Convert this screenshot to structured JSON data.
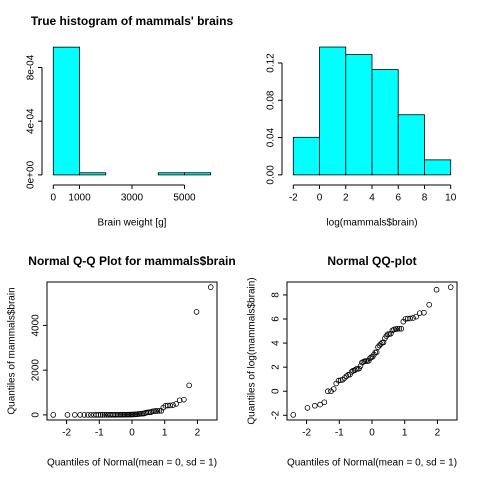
{
  "chart_data": [
    {
      "type": "histogram",
      "title": "True histogram of mammals' brains",
      "xlabel": "Brain weight [g]",
      "bins": [
        0,
        1000,
        2000,
        3000,
        4000,
        5000,
        6000
      ],
      "values": [
        0.0009516,
        1.613e-05,
        0,
        0,
        1.613e-05,
        1.613e-05
      ],
      "color": "#00ffff",
      "xlim": [
        -240,
        6240
      ],
      "ylim": [
        -3.8e-05,
        0.00099
      ],
      "xticks": [
        0,
        1000,
        3000,
        5000
      ],
      "yticks": [
        {
          "value": 0,
          "label": "0e+00"
        },
        {
          "value": 0.0004,
          "label": "4e-04"
        },
        {
          "value": 0.0008,
          "label": "8e-04"
        }
      ]
    },
    {
      "type": "histogram",
      "title": "",
      "xlabel": "log(mammals$brain)",
      "bins": [
        -2,
        0,
        2,
        4,
        6,
        8,
        10
      ],
      "values": [
        0.0403,
        0.1371,
        0.129,
        0.1129,
        0.0645,
        0.0161
      ],
      "color": "#00ffff",
      "xlim": [
        -2.48,
        10.48
      ],
      "ylim": [
        -0.0055,
        0.1425
      ],
      "xticks": [
        -2,
        0,
        2,
        4,
        6,
        8,
        10
      ],
      "yticks": [
        {
          "value": 0,
          "label": "0.00"
        },
        0.04,
        0.08,
        0.12
      ]
    },
    {
      "type": "scatter",
      "title": "Normal Q-Q Plot for mammals$brain",
      "xlabel": "Quantiles of Normal(mean = 0, sd = 1)",
      "ylabel": "Quantiles of mammals$brain",
      "x": [
        -2.406,
        -1.973,
        -1.748,
        -1.586,
        -1.457,
        -1.349,
        -1.254,
        -1.17,
        -1.094,
        -1.023,
        -0.957,
        -0.894,
        -0.836,
        -0.78,
        -0.726,
        -0.674,
        -0.624,
        -0.576,
        -0.529,
        -0.483,
        -0.438,
        -0.394,
        -0.351,
        -0.308,
        -0.266,
        -0.225,
        -0.183,
        -0.142,
        -0.101,
        -0.061,
        -0.02,
        0.02,
        0.061,
        0.101,
        0.142,
        0.183,
        0.225,
        0.266,
        0.308,
        0.351,
        0.394,
        0.438,
        0.483,
        0.529,
        0.576,
        0.624,
        0.674,
        0.726,
        0.78,
        0.836,
        0.894,
        0.957,
        1.023,
        1.094,
        1.17,
        1.254,
        1.349,
        1.457,
        1.586,
        1.748,
        1.973,
        2.406
      ],
      "y": [
        0.14,
        0.25,
        0.3,
        0.33,
        0.4,
        1,
        1,
        1.2,
        1.9,
        2.4,
        2.5,
        2.6,
        3,
        3.5,
        3.9,
        4,
        5,
        5.5,
        5.7,
        6.3,
        6.4,
        6.6,
        8.1,
        10.8,
        11.4,
        12.1,
        12.3,
        12.3,
        12.5,
        15.5,
        17,
        17.5,
        21,
        25,
        25.6,
        39.2,
        44.5,
        50.4,
        56,
        58,
        81,
        98.2,
        115,
        115,
        119.5,
        157,
        169,
        175,
        179,
        179.5,
        180,
        325,
        406,
        419,
        423,
        440,
        490,
        655,
        680,
        1320,
        4603,
        5712
      ],
      "xlim": [
        -2.598,
        2.598
      ],
      "ylim": [
        -228,
        5940
      ],
      "xticks": [
        -2,
        -1,
        0,
        1,
        2
      ],
      "yticks": [
        0,
        2000,
        4000
      ]
    },
    {
      "type": "scatter",
      "title": "Normal QQ-plot",
      "xlabel": "Quantiles of Normal(mean = 0, sd = 1)",
      "ylabel": "Quantiles of log(mammals$brain)",
      "x": [
        -2.406,
        -1.973,
        -1.748,
        -1.586,
        -1.457,
        -1.349,
        -1.254,
        -1.17,
        -1.094,
        -1.023,
        -0.957,
        -0.894,
        -0.836,
        -0.78,
        -0.726,
        -0.674,
        -0.624,
        -0.576,
        -0.529,
        -0.483,
        -0.438,
        -0.394,
        -0.351,
        -0.308,
        -0.266,
        -0.225,
        -0.183,
        -0.142,
        -0.101,
        -0.061,
        -0.02,
        0.02,
        0.061,
        0.101,
        0.142,
        0.183,
        0.225,
        0.266,
        0.308,
        0.351,
        0.394,
        0.438,
        0.483,
        0.529,
        0.576,
        0.624,
        0.674,
        0.726,
        0.78,
        0.836,
        0.894,
        0.957,
        1.023,
        1.094,
        1.17,
        1.254,
        1.349,
        1.457,
        1.586,
        1.748,
        1.973,
        2.406
      ],
      "y": [
        -1.966,
        -1.386,
        -1.204,
        -1.109,
        -0.916,
        0,
        0,
        0.182,
        0.642,
        0.875,
        0.916,
        0.956,
        1.099,
        1.253,
        1.361,
        1.386,
        1.609,
        1.705,
        1.74,
        1.841,
        1.856,
        1.887,
        2.092,
        2.38,
        2.434,
        2.493,
        2.51,
        2.51,
        2.526,
        2.741,
        2.833,
        2.862,
        3.045,
        3.219,
        3.243,
        3.669,
        3.795,
        3.92,
        4.025,
        4.06,
        4.394,
        4.587,
        4.745,
        4.745,
        4.783,
        5.056,
        5.13,
        5.165,
        5.187,
        5.19,
        5.193,
        5.784,
        6.006,
        6.038,
        6.047,
        6.087,
        6.194,
        6.485,
        6.522,
        7.185,
        8.434,
        8.65
      ],
      "xlim": [
        -2.598,
        2.598
      ],
      "ylim": [
        -2.391,
        9.075
      ],
      "xticks": [
        -2,
        -1,
        0,
        1,
        2
      ],
      "yticks": [
        -2,
        0,
        2,
        4,
        6,
        8
      ]
    }
  ]
}
